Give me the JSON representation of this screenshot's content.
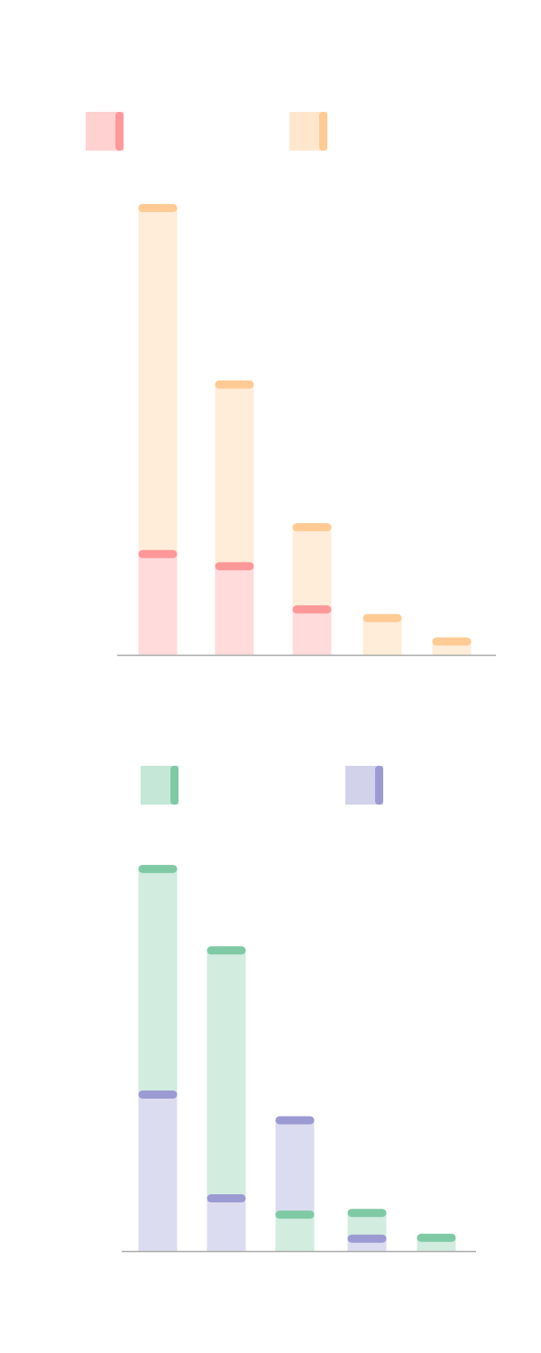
{
  "chart_data": [
    {
      "type": "bar",
      "categories": [
        "",
        "",
        "",
        "",
        ""
      ],
      "series": [
        {
          "color": "#fe9898",
          "values": [
            117,
            103,
            53,
            0,
            0
          ]
        },
        {
          "color": "#ffca93",
          "values": [
            517,
            313,
            148,
            43,
            16
          ]
        }
      ],
      "ylim": [
        0,
        540
      ],
      "legend": "top",
      "grid": false
    },
    {
      "type": "bar",
      "categories": [
        "",
        "",
        "",
        "",
        ""
      ],
      "series": [
        {
          "color": "#7fcaa5",
          "values": [
            446,
            351,
            43,
            45,
            16
          ]
        },
        {
          "color": "#9c9ad3",
          "values": [
            183,
            62,
            153,
            15,
            0
          ]
        }
      ],
      "ylim": [
        0,
        470
      ],
      "legend": "top",
      "grid": false
    }
  ]
}
